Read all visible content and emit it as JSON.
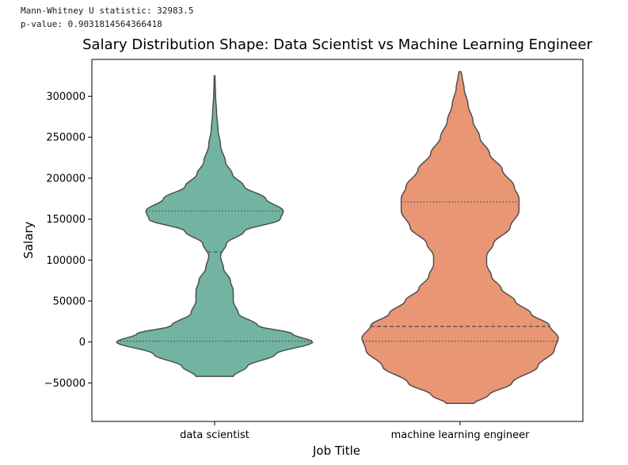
{
  "stats": {
    "line1": "Mann-Whitney U statistic: 32983.5",
    "line2": "p-value: 0.9031814564366418"
  },
  "chart_data": {
    "type": "violin",
    "title": "Salary Distribution Shape: Data Scientist vs Machine Learning Engineer",
    "xlabel": "Job Title",
    "ylabel": "Salary",
    "ylim": [
      -97000,
      345000
    ],
    "yticks": [
      -50000,
      0,
      50000,
      100000,
      150000,
      200000,
      250000,
      300000
    ],
    "ytick_labels": [
      "−50000",
      "0",
      "50000",
      "100000",
      "150000",
      "200000",
      "250000",
      "300000"
    ],
    "grid": false,
    "inner": "quartile",
    "categories": [
      "data scientist",
      "machine learning engineer"
    ],
    "colors": [
      "#72b4a1",
      "#e99675"
    ],
    "edge_color": "#4f4f4f",
    "series": [
      {
        "category": "data scientist",
        "min": -42000,
        "max": 325000,
        "quartiles": {
          "q1": 1000,
          "median": 110000,
          "q3": 160000
        },
        "density_profile": [
          [
            -42000,
            0.19
          ],
          [
            -30000,
            0.33
          ],
          [
            -15000,
            0.62
          ],
          [
            0,
            1.0
          ],
          [
            10000,
            0.79
          ],
          [
            20000,
            0.44
          ],
          [
            35000,
            0.24
          ],
          [
            50000,
            0.19
          ],
          [
            62000,
            0.19
          ],
          [
            75000,
            0.16
          ],
          [
            90000,
            0.09
          ],
          [
            105000,
            0.06
          ],
          [
            120000,
            0.12
          ],
          [
            135000,
            0.3
          ],
          [
            150000,
            0.67
          ],
          [
            160000,
            0.7
          ],
          [
            175000,
            0.52
          ],
          [
            190000,
            0.3
          ],
          [
            205000,
            0.18
          ],
          [
            220000,
            0.11
          ],
          [
            240000,
            0.06
          ],
          [
            260000,
            0.034
          ],
          [
            280000,
            0.02
          ],
          [
            300000,
            0.01
          ],
          [
            315000,
            0.006
          ],
          [
            325000,
            0.004
          ]
        ]
      },
      {
        "category": "machine learning engineer",
        "min": -75000,
        "max": 330000,
        "quartiles": {
          "q1": 1000,
          "median": 19000,
          "q3": 171000
        },
        "density_profile": [
          [
            -75000,
            0.14
          ],
          [
            -65000,
            0.29
          ],
          [
            -50000,
            0.53
          ],
          [
            -30000,
            0.79
          ],
          [
            -10000,
            0.96
          ],
          [
            5000,
            1.0
          ],
          [
            20000,
            0.91
          ],
          [
            35000,
            0.72
          ],
          [
            50000,
            0.56
          ],
          [
            65000,
            0.42
          ],
          [
            80000,
            0.32
          ],
          [
            95000,
            0.27
          ],
          [
            105000,
            0.27
          ],
          [
            120000,
            0.34
          ],
          [
            140000,
            0.51
          ],
          [
            160000,
            0.6
          ],
          [
            175000,
            0.6
          ],
          [
            190000,
            0.55
          ],
          [
            210000,
            0.43
          ],
          [
            230000,
            0.3
          ],
          [
            250000,
            0.2
          ],
          [
            270000,
            0.13
          ],
          [
            290000,
            0.08
          ],
          [
            310000,
            0.04
          ],
          [
            325000,
            0.02
          ],
          [
            330000,
            0.01
          ]
        ]
      }
    ]
  }
}
